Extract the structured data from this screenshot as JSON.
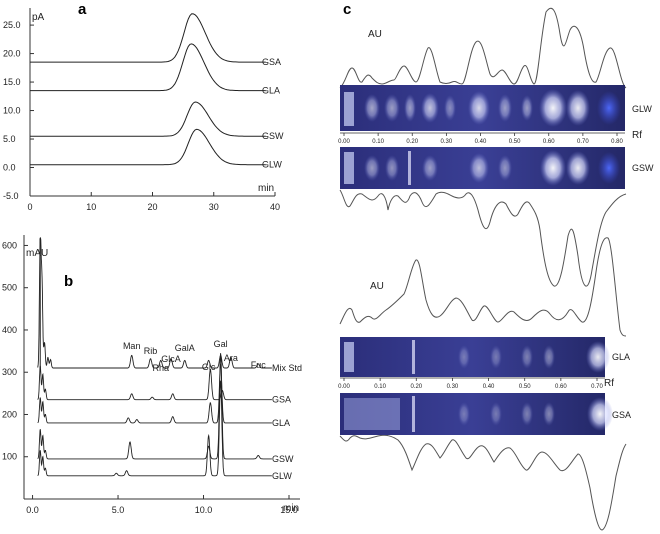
{
  "panels": {
    "a": "a",
    "b": "b",
    "c": "c"
  },
  "chart_data": [
    {
      "type": "line",
      "panel": "a",
      "ylabel": "pA",
      "xlabel": "min",
      "xlim": [
        0,
        40
      ],
      "ylim": [
        -5,
        28
      ],
      "xticks": [
        "0",
        "10",
        "20",
        "30",
        "40"
      ],
      "yticks": [
        "-5.0",
        "0.0",
        "5.0",
        "10.0",
        "15.0",
        "20.0",
        "25.0"
      ],
      "series": [
        {
          "name": "GSA",
          "baseline": 18.5,
          "peak_x": 26.5,
          "peak_height": 8.5
        },
        {
          "name": "GLA",
          "baseline": 13.5,
          "peak_x": 26.3,
          "peak_height": 8.2
        },
        {
          "name": "GSW",
          "baseline": 5.5,
          "peak_x": 27.0,
          "peak_height": 6.0
        },
        {
          "name": "GLW",
          "baseline": 0.5,
          "peak_x": 27.2,
          "peak_height": 6.2
        }
      ]
    },
    {
      "type": "line",
      "panel": "b",
      "ylabel": "mAU",
      "xlabel": "min",
      "xlim": [
        -0.5,
        15
      ],
      "ylim": [
        0,
        620
      ],
      "xticks": [
        "0.0",
        "5.0",
        "10.0",
        "15.0"
      ],
      "yticks": [
        "100",
        "200",
        "300",
        "400",
        "500",
        "600"
      ],
      "peak_labels": [
        {
          "label": "Man",
          "x": 5.8
        },
        {
          "label": "Rib",
          "x": 6.9
        },
        {
          "label": "Rha",
          "x": 7.5
        },
        {
          "label": "GlcA",
          "x": 8.1
        },
        {
          "label": "GalA",
          "x": 8.9
        },
        {
          "label": "Glc",
          "x": 10.3
        },
        {
          "label": "Gal",
          "x": 11.0
        },
        {
          "label": "Ara",
          "x": 11.6
        },
        {
          "label": "Fuc",
          "x": 13.2
        }
      ],
      "series": [
        {
          "name": "Mix Std",
          "baseline": 310
        },
        {
          "name": "GSA",
          "baseline": 235
        },
        {
          "name": "GLA",
          "baseline": 180
        },
        {
          "name": "GSW",
          "baseline": 95
        },
        {
          "name": "GLW",
          "baseline": 55
        }
      ]
    },
    {
      "type": "line",
      "panel": "c",
      "ylabel": "AU",
      "xlabel": "Rf",
      "xticks_top": [
        "0.00",
        "0.10",
        "0.20",
        "0.30",
        "0.40",
        "0.50",
        "0.60",
        "0.70",
        "0.80"
      ],
      "xticks_bottom": [
        "0.00",
        "0.10",
        "0.20",
        "0.30",
        "0.40",
        "0.50",
        "0.60",
        "0.70"
      ],
      "lanes": [
        "GLW",
        "GSW",
        "GLA",
        "GSA"
      ]
    }
  ]
}
